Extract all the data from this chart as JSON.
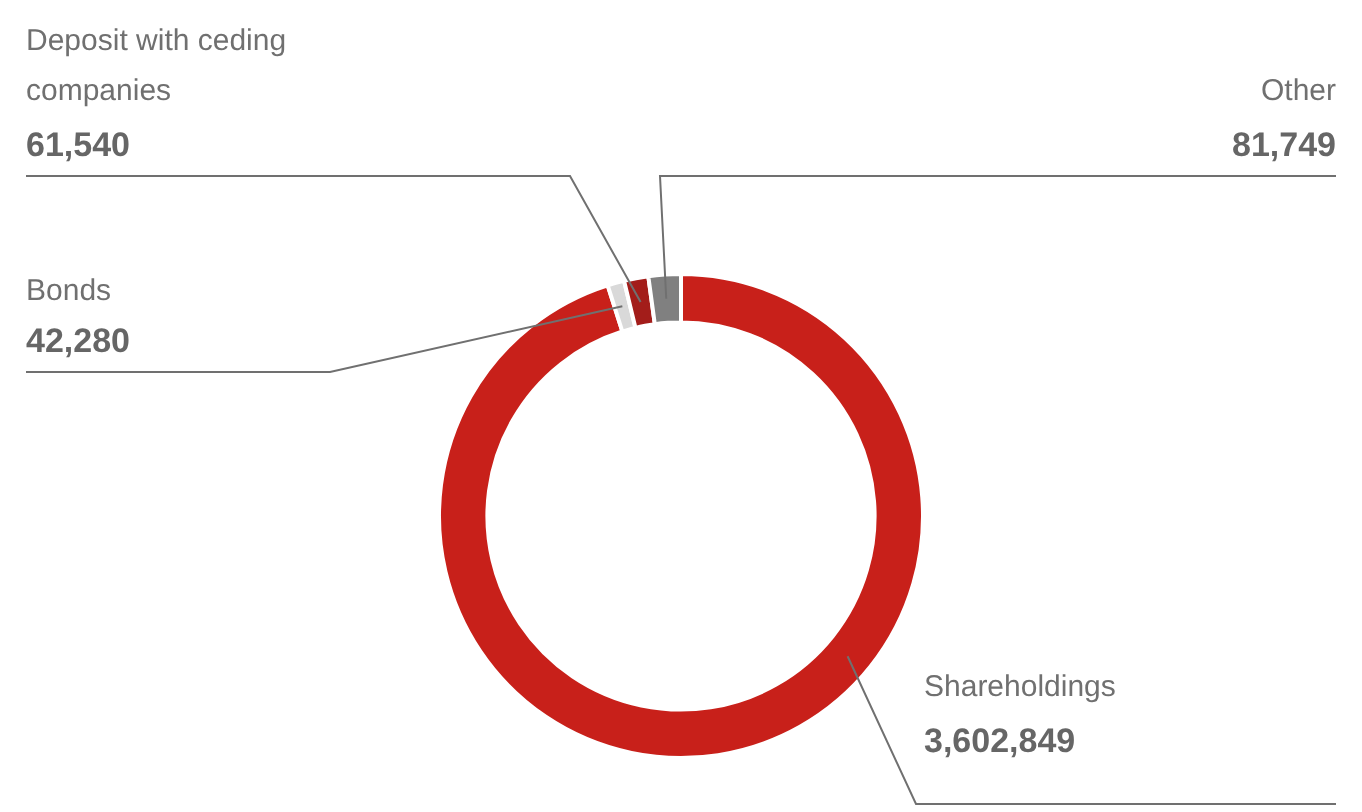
{
  "chart_data": {
    "type": "donut",
    "categories": [
      "Shareholdings",
      "Bonds",
      "Deposit with ceding companies",
      "Other"
    ],
    "values": [
      3602849,
      42280,
      61540,
      81749
    ],
    "colors": [
      "#c8201a",
      "#d9d9d9",
      "#a31d1a",
      "#808080"
    ],
    "value_labels": [
      "3,602,849",
      "42,280",
      "61,540",
      "81,749"
    ],
    "legend": false
  }
}
